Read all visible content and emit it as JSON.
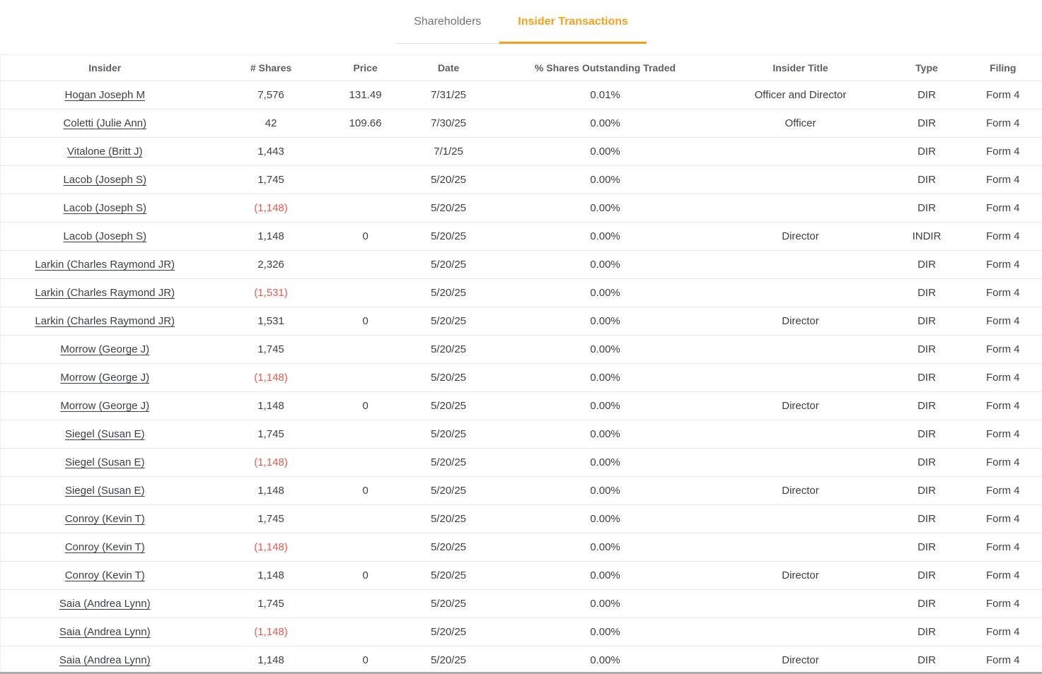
{
  "colors": {
    "accent_orange": "#F7A01E",
    "negative_red": "#E9594E",
    "text_dark": "#3C4043",
    "text_muted": "#71757A"
  },
  "tabs": {
    "shareholders": "Shareholders",
    "insider_transactions": "Insider Transactions",
    "active_tab": "Insider Transactions"
  },
  "table": {
    "headers": [
      "Insider",
      "# Shares",
      "Price",
      "Date",
      "% Shares Outstanding Traded",
      "Insider Title",
      "Type",
      "Filing"
    ],
    "rows": [
      [
        "Hogan Joseph M",
        "7,576",
        "131.49",
        "7/31/25",
        "0.01%",
        "Officer and Director",
        "DIR",
        "Form 4"
      ],
      [
        "Coletti (Julie Ann)",
        "42",
        "109.66",
        "7/30/25",
        "0.00%",
        "Officer",
        "DIR",
        "Form 4"
      ],
      [
        "Vitalone (Britt J)",
        "1,443",
        "",
        "7/1/25",
        "0.00%",
        "",
        "DIR",
        "Form 4"
      ],
      [
        "Lacob (Joseph S)",
        "1,745",
        "",
        "5/20/25",
        "0.00%",
        "",
        "DIR",
        "Form 4"
      ],
      [
        "Lacob (Joseph S)",
        "(1,148)",
        "",
        "5/20/25",
        "0.00%",
        "",
        "DIR",
        "Form 4"
      ],
      [
        "Lacob (Joseph S)",
        "1,148",
        "0",
        "5/20/25",
        "0.00%",
        "Director",
        "INDIR",
        "Form 4"
      ],
      [
        "Larkin (Charles Raymond JR)",
        "2,326",
        "",
        "5/20/25",
        "0.00%",
        "",
        "DIR",
        "Form 4"
      ],
      [
        "Larkin (Charles Raymond JR)",
        "(1,531)",
        "",
        "5/20/25",
        "0.00%",
        "",
        "DIR",
        "Form 4"
      ],
      [
        "Larkin (Charles Raymond JR)",
        "1,531",
        "0",
        "5/20/25",
        "0.00%",
        "Director",
        "DIR",
        "Form 4"
      ],
      [
        "Morrow (George J)",
        "1,745",
        "",
        "5/20/25",
        "0.00%",
        "",
        "DIR",
        "Form 4"
      ],
      [
        "Morrow (George J)",
        "(1,148)",
        "",
        "5/20/25",
        "0.00%",
        "",
        "DIR",
        "Form 4"
      ],
      [
        "Morrow (George J)",
        "1,148",
        "0",
        "5/20/25",
        "0.00%",
        "Director",
        "DIR",
        "Form 4"
      ],
      [
        "Siegel (Susan E)",
        "1,745",
        "",
        "5/20/25",
        "0.00%",
        "",
        "DIR",
        "Form 4"
      ],
      [
        "Siegel (Susan E)",
        "(1,148)",
        "",
        "5/20/25",
        "0.00%",
        "",
        "DIR",
        "Form 4"
      ],
      [
        "Siegel (Susan E)",
        "1,148",
        "0",
        "5/20/25",
        "0.00%",
        "Director",
        "DIR",
        "Form 4"
      ],
      [
        "Conroy (Kevin T)",
        "1,745",
        "",
        "5/20/25",
        "0.00%",
        "",
        "DIR",
        "Form 4"
      ],
      [
        "Conroy (Kevin T)",
        "(1,148)",
        "",
        "5/20/25",
        "0.00%",
        "",
        "DIR",
        "Form 4"
      ],
      [
        "Conroy (Kevin T)",
        "1,148",
        "0",
        "5/20/25",
        "0.00%",
        "Director",
        "DIR",
        "Form 4"
      ],
      [
        "Saia (Andrea Lynn)",
        "1,745",
        "",
        "5/20/25",
        "0.00%",
        "",
        "DIR",
        "Form 4"
      ],
      [
        "Saia (Andrea Lynn)",
        "(1,148)",
        "",
        "5/20/25",
        "0.00%",
        "",
        "DIR",
        "Form 4"
      ],
      [
        "Saia (Andrea Lynn)",
        "1,148",
        "0",
        "5/20/25",
        "0.00%",
        "Director",
        "DIR",
        "Form 4"
      ]
    ]
  }
}
